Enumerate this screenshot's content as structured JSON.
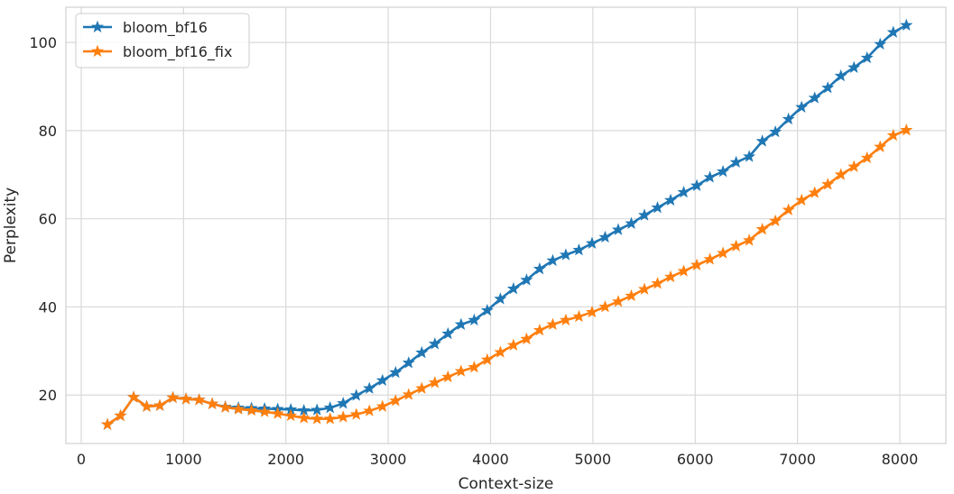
{
  "chart_data": {
    "type": "line",
    "xlabel": "Context-size",
    "ylabel": "Perplexity",
    "xlim": [
      -150,
      8450
    ],
    "ylim": [
      9,
      108
    ],
    "xticks": [
      0,
      1000,
      2000,
      3000,
      4000,
      5000,
      6000,
      7000,
      8000
    ],
    "yticks": [
      20,
      40,
      60,
      80,
      100
    ],
    "grid": true,
    "legend": "upper-left",
    "x": [
      256,
      384,
      512,
      640,
      768,
      896,
      1024,
      1152,
      1280,
      1408,
      1536,
      1664,
      1792,
      1920,
      2048,
      2176,
      2304,
      2432,
      2560,
      2688,
      2816,
      2944,
      3072,
      3200,
      3328,
      3456,
      3584,
      3712,
      3840,
      3968,
      4096,
      4224,
      4352,
      4480,
      4608,
      4736,
      4864,
      4992,
      5120,
      5248,
      5376,
      5504,
      5632,
      5760,
      5888,
      6016,
      6144,
      6272,
      6400,
      6528,
      6656,
      6784,
      6912,
      7040,
      7168,
      7296,
      7424,
      7552,
      7680,
      7808,
      7936,
      8064
    ],
    "series": [
      {
        "name": "bloom_bf16",
        "color": "#1f77b4",
        "values": [
          13.3,
          15.3,
          19.5,
          17.4,
          17.6,
          19.4,
          19.1,
          18.9,
          18.0,
          17.3,
          17.1,
          17.0,
          16.9,
          16.8,
          16.7,
          16.5,
          16.6,
          17.1,
          18.1,
          19.9,
          21.5,
          23.3,
          25.1,
          27.3,
          29.6,
          31.6,
          33.9,
          36.0,
          37.0,
          39.2,
          41.8,
          44.1,
          46.1,
          48.6,
          50.5,
          51.8,
          52.9,
          54.4,
          55.8,
          57.5,
          58.9,
          60.8,
          62.5,
          64.2,
          66.0,
          67.5,
          69.4,
          70.7,
          72.8,
          74.1,
          77.6,
          79.7,
          82.6,
          85.3,
          87.4,
          89.7,
          92.4,
          94.3,
          96.5,
          99.6,
          102.3,
          103.9
        ]
      },
      {
        "name": "bloom_bf16_fix",
        "color": "#ff7f0e",
        "values": [
          13.3,
          15.3,
          19.5,
          17.4,
          17.6,
          19.4,
          19.1,
          18.9,
          18.0,
          17.2,
          16.8,
          16.5,
          16.2,
          15.8,
          15.3,
          14.8,
          14.6,
          14.6,
          15.0,
          15.6,
          16.4,
          17.4,
          18.7,
          20.1,
          21.5,
          22.8,
          24.1,
          25.4,
          26.3,
          28.0,
          29.7,
          31.3,
          32.7,
          34.7,
          36.0,
          37.0,
          37.8,
          38.8,
          40.0,
          41.2,
          42.5,
          44.0,
          45.3,
          46.8,
          48.1,
          49.5,
          50.8,
          52.2,
          53.8,
          55.1,
          57.6,
          59.5,
          62.0,
          64.2,
          65.9,
          67.8,
          70.0,
          71.8,
          73.8,
          76.3,
          78.9,
          80.1
        ]
      }
    ]
  }
}
